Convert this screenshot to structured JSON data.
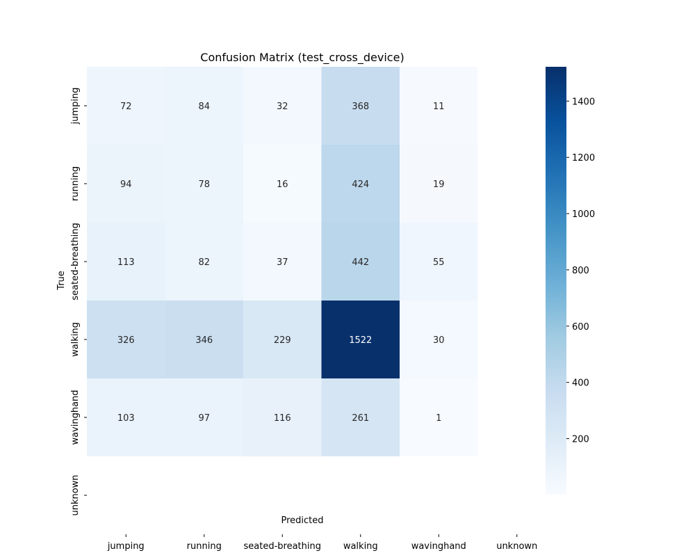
{
  "chart_data": {
    "type": "heatmap",
    "title": "Confusion Matrix (test_cross_device)",
    "xlabel": "Predicted",
    "ylabel": "True",
    "x_categories": [
      "jumping",
      "running",
      "seated-breathing",
      "walking",
      "wavinghand",
      "unknown"
    ],
    "y_categories": [
      "jumping",
      "running",
      "seated-breathing",
      "walking",
      "wavinghand",
      "unknown"
    ],
    "matrix": [
      [
        72,
        84,
        32,
        368,
        11,
        null
      ],
      [
        94,
        78,
        16,
        424,
        19,
        null
      ],
      [
        113,
        82,
        37,
        442,
        55,
        null
      ],
      [
        326,
        346,
        229,
        1522,
        30,
        null
      ],
      [
        103,
        97,
        116,
        261,
        1,
        null
      ],
      [
        null,
        null,
        null,
        null,
        null,
        null
      ]
    ],
    "colormap": "Blues",
    "colorbar": {
      "min": 1,
      "max": 1522,
      "ticks": [
        200,
        400,
        600,
        800,
        1000,
        1200,
        1400
      ]
    },
    "colors": {
      "low": "#f7fbff",
      "high": "#08306b",
      "text_dark": "#262626",
      "text_light": "#ffffff"
    }
  }
}
